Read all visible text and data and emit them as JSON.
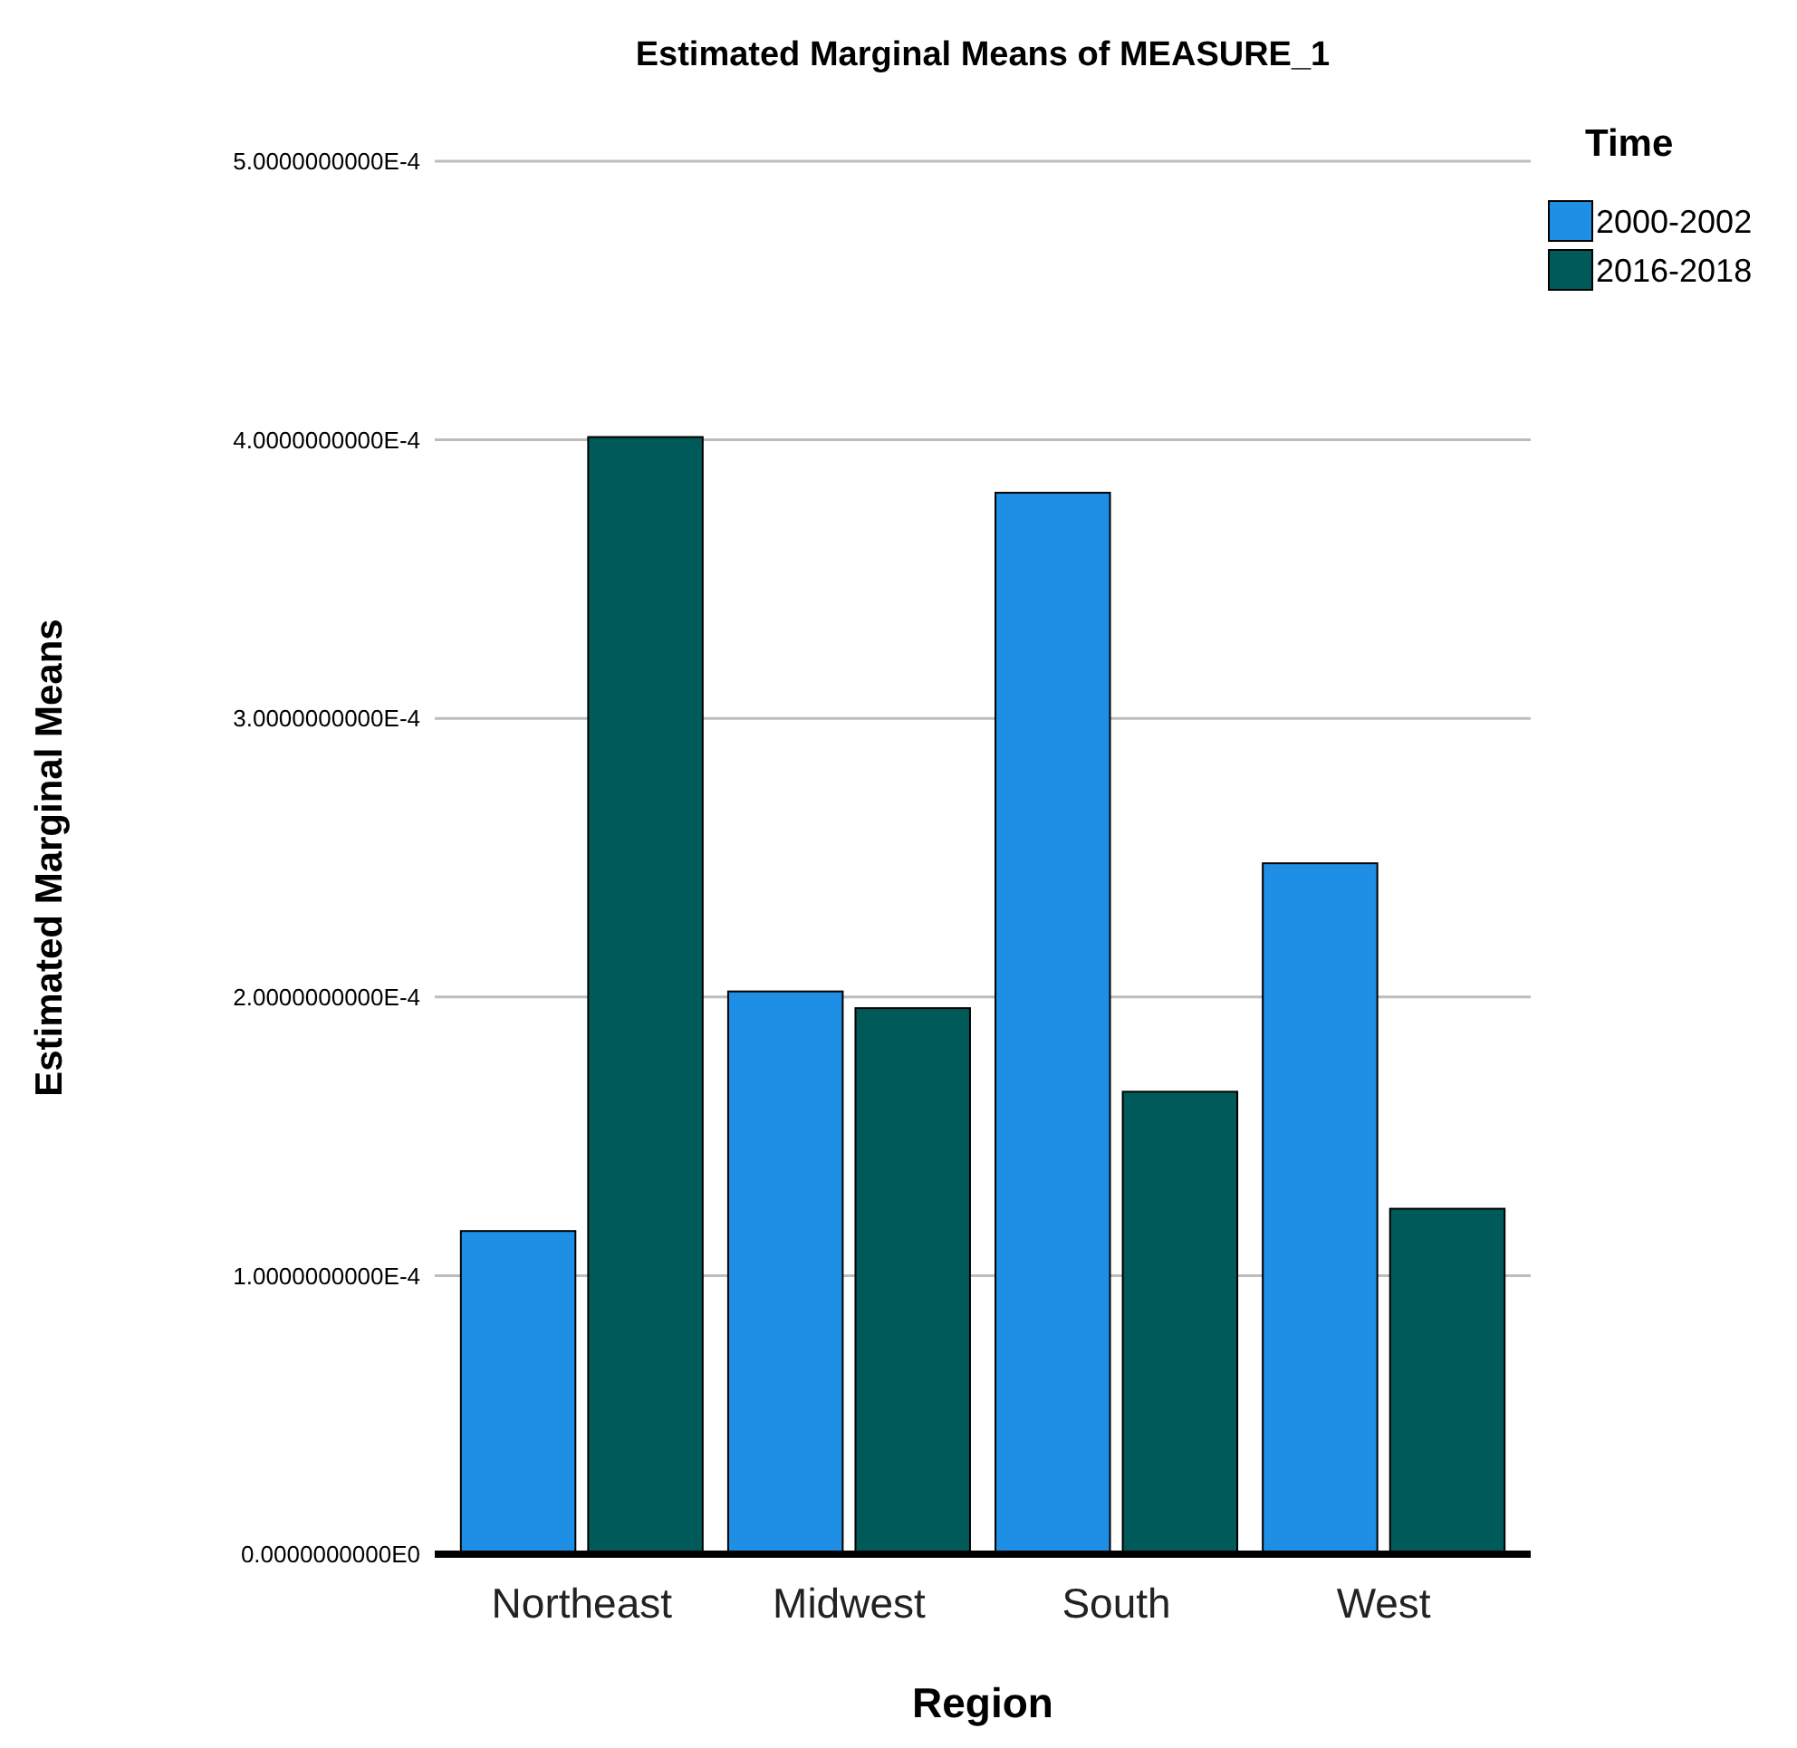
{
  "chart_data": {
    "type": "bar",
    "title": "Estimated Marginal Means of MEASURE_1",
    "xlabel": "Region",
    "ylabel": "Estimated Marginal Means",
    "legend_title": "Time",
    "categories": [
      "Northeast",
      "Midwest",
      "South",
      "West"
    ],
    "series": [
      {
        "name": "2000-2002",
        "color": "#1f8fe5",
        "values": [
          0.000116,
          0.000202,
          0.000381,
          0.000248
        ]
      },
      {
        "name": "2016-2018",
        "color": "#005a5a",
        "values": [
          0.000401,
          0.000196,
          0.000166,
          0.000124
        ]
      }
    ],
    "ylim": [
      0,
      0.0005
    ],
    "yticks": [
      {
        "value": 0,
        "label": "0.0000000000E0"
      },
      {
        "value": 0.0001,
        "label": "1.0000000000E-4"
      },
      {
        "value": 0.0002,
        "label": "2.0000000000E-4"
      },
      {
        "value": 0.0003,
        "label": "3.0000000000E-4"
      },
      {
        "value": 0.0004,
        "label": "4.0000000000E-4"
      },
      {
        "value": 0.0005,
        "label": "5.0000000000E-4"
      }
    ],
    "grid": "y",
    "legend": "top right"
  }
}
